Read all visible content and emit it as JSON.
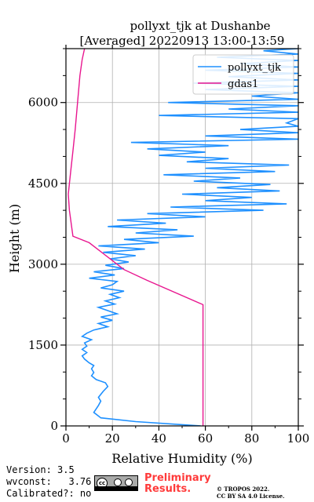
{
  "chart_data": {
    "type": "line",
    "title": "pollyxt_tjk at Dushanbe",
    "subtitle": "[Averaged] 20220913 13:00-13:59",
    "xlabel": "Relative Humidity (%)",
    "ylabel": "Height (m)",
    "xlim": [
      0,
      100
    ],
    "ylim": [
      0,
      7000
    ],
    "xticks": [
      0,
      20,
      40,
      60,
      80,
      100
    ],
    "yticks": [
      0,
      1500,
      3000,
      4500,
      6000
    ],
    "grid": true,
    "legend_position": "top-right",
    "series": [
      {
        "name": "pollyxt_tjk",
        "color": "#1e90ff",
        "points": [
          [
            58,
            0
          ],
          [
            30,
            80
          ],
          [
            15,
            150
          ],
          [
            12,
            250
          ],
          [
            14,
            380
          ],
          [
            15,
            460
          ],
          [
            14,
            530
          ],
          [
            16,
            640
          ],
          [
            18,
            730
          ],
          [
            17,
            800
          ],
          [
            13,
            860
          ],
          [
            11,
            930
          ],
          [
            12,
            990
          ],
          [
            11,
            1060
          ],
          [
            12,
            1120
          ],
          [
            10,
            1170
          ],
          [
            8,
            1240
          ],
          [
            7,
            1300
          ],
          [
            9,
            1360
          ],
          [
            7,
            1420
          ],
          [
            9,
            1480
          ],
          [
            8,
            1540
          ],
          [
            11,
            1600
          ],
          [
            7,
            1660
          ],
          [
            9,
            1720
          ],
          [
            12,
            1780
          ],
          [
            18,
            1840
          ],
          [
            14,
            1900
          ],
          [
            20,
            1960
          ],
          [
            15,
            2020
          ],
          [
            22,
            2080
          ],
          [
            18,
            2140
          ],
          [
            14,
            2200
          ],
          [
            21,
            2260
          ],
          [
            17,
            2320
          ],
          [
            23,
            2380
          ],
          [
            19,
            2440
          ],
          [
            25,
            2500
          ],
          [
            15,
            2560
          ],
          [
            20,
            2620
          ],
          [
            22,
            2680
          ],
          [
            10,
            2740
          ],
          [
            21,
            2800
          ],
          [
            12,
            2860
          ],
          [
            25,
            2920
          ],
          [
            17,
            2980
          ],
          [
            27,
            3040
          ],
          [
            19,
            3100
          ],
          [
            30,
            3160
          ],
          [
            16,
            3220
          ],
          [
            34,
            3280
          ],
          [
            14,
            3340
          ],
          [
            40,
            3400
          ],
          [
            25,
            3460
          ],
          [
            55,
            3520
          ],
          [
            30,
            3580
          ],
          [
            48,
            3640
          ],
          [
            18,
            3700
          ],
          [
            43,
            3760
          ],
          [
            22,
            3820
          ],
          [
            60,
            3880
          ],
          [
            35,
            3940
          ],
          [
            85,
            4000
          ],
          [
            45,
            4060
          ],
          [
            95,
            4120
          ],
          [
            60,
            4180
          ],
          [
            80,
            4240
          ],
          [
            50,
            4300
          ],
          [
            92,
            4360
          ],
          [
            65,
            4420
          ],
          [
            88,
            4480
          ],
          [
            55,
            4540
          ],
          [
            75,
            4600
          ],
          [
            42,
            4660
          ],
          [
            90,
            4720
          ],
          [
            60,
            4780
          ],
          [
            96,
            4840
          ],
          [
            52,
            4900
          ],
          [
            70,
            4960
          ],
          [
            40,
            5020
          ],
          [
            60,
            5080
          ],
          [
            35,
            5140
          ],
          [
            70,
            5200
          ],
          [
            28,
            5260
          ],
          [
            100,
            5320
          ],
          [
            60,
            5380
          ],
          [
            100,
            5440
          ],
          [
            75,
            5500
          ],
          [
            100,
            5560
          ],
          [
            95,
            5620
          ],
          [
            100,
            5700
          ],
          [
            40,
            5760
          ],
          [
            100,
            5820
          ],
          [
            70,
            5880
          ],
          [
            100,
            5940
          ],
          [
            44,
            6000
          ],
          [
            100,
            6060
          ],
          [
            80,
            6120
          ],
          [
            100,
            6180
          ],
          [
            60,
            6240
          ],
          [
            100,
            6300
          ],
          [
            55,
            6360
          ],
          [
            100,
            6420
          ],
          [
            70,
            6480
          ],
          [
            100,
            6540
          ],
          [
            60,
            6600
          ],
          [
            100,
            6660
          ],
          [
            75,
            6720
          ],
          [
            100,
            6780
          ],
          [
            65,
            6840
          ],
          [
            100,
            6900
          ],
          [
            85,
            6960
          ],
          [
            100,
            7000
          ]
        ]
      },
      {
        "name": "gdas1",
        "color": "#e8168f",
        "points": [
          [
            59,
            0
          ],
          [
            59,
            2250
          ],
          [
            35,
            2700
          ],
          [
            25,
            2900
          ],
          [
            10,
            3400
          ],
          [
            3,
            3520
          ],
          [
            1.5,
            4000
          ],
          [
            1,
            4300
          ],
          [
            2,
            4700
          ],
          [
            3,
            5100
          ],
          [
            4,
            5500
          ],
          [
            5,
            6000
          ],
          [
            6,
            6500
          ],
          [
            7,
            6800
          ],
          [
            8,
            7000
          ]
        ]
      }
    ]
  },
  "footer": {
    "version_line": "Version: 3.5",
    "wvconst_line": "wvconst:   3.76",
    "calibrated_line": "Calibrated?: no",
    "license_badge_text": "cc",
    "preliminary_line1": "Preliminary",
    "preliminary_line2": "Results.",
    "copyright_line1": "© TROPOS 2022.",
    "copyright_line2": "CC BY SA 4.0 License."
  }
}
